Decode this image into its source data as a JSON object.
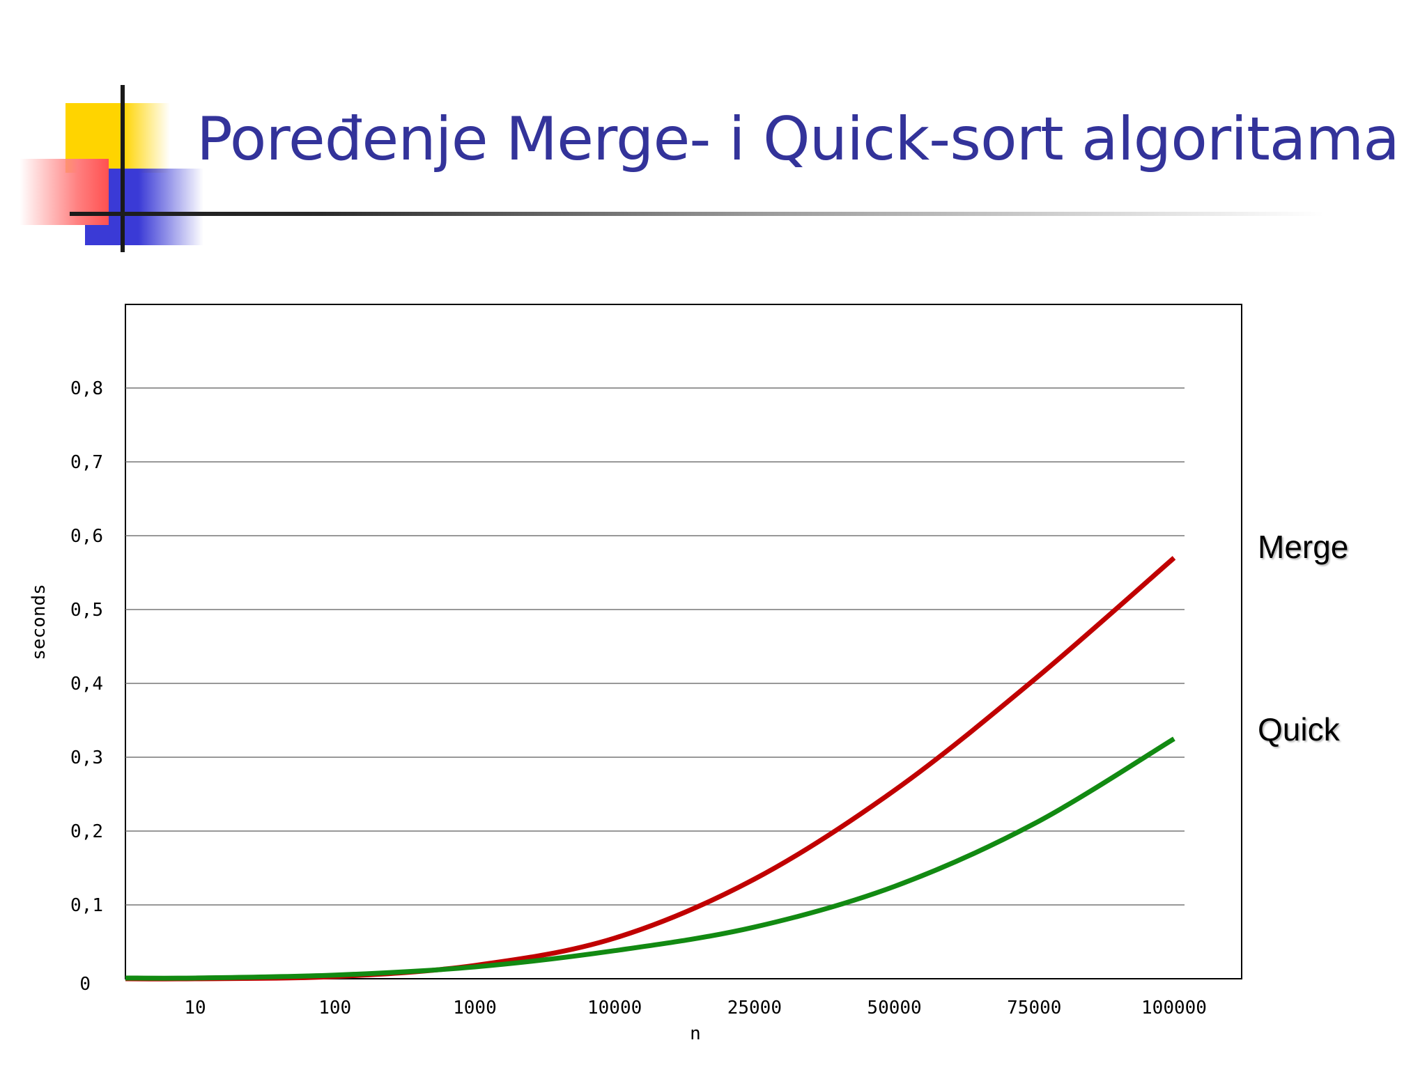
{
  "slide": {
    "title": "Poređenje Merge- i Quick-sort algoritama"
  },
  "chart_data": {
    "type": "line",
    "title": "",
    "xlabel": "n",
    "ylabel": "seconds",
    "ylim": [
      0,
      0.9
    ],
    "x_scale": "categorical",
    "categories": [
      "10",
      "100",
      "1000",
      "10000",
      "25000",
      "50000",
      "75000",
      "100000"
    ],
    "y_ticks": [
      "0",
      "0,1",
      "0,2",
      "0,3",
      "0,4",
      "0,5",
      "0,6",
      "0,7",
      "0,8"
    ],
    "grid": true,
    "legend": "right, labels at line ends",
    "series": [
      {
        "name": "Merge",
        "color": "#c00000",
        "values": [
          0.0,
          0.003,
          0.018,
          0.055,
          0.135,
          0.255,
          0.405,
          0.57
        ]
      },
      {
        "name": "Quick",
        "color": "#128a12",
        "values": [
          0.001,
          0.005,
          0.016,
          0.038,
          0.07,
          0.125,
          0.21,
          0.325
        ]
      }
    ]
  }
}
